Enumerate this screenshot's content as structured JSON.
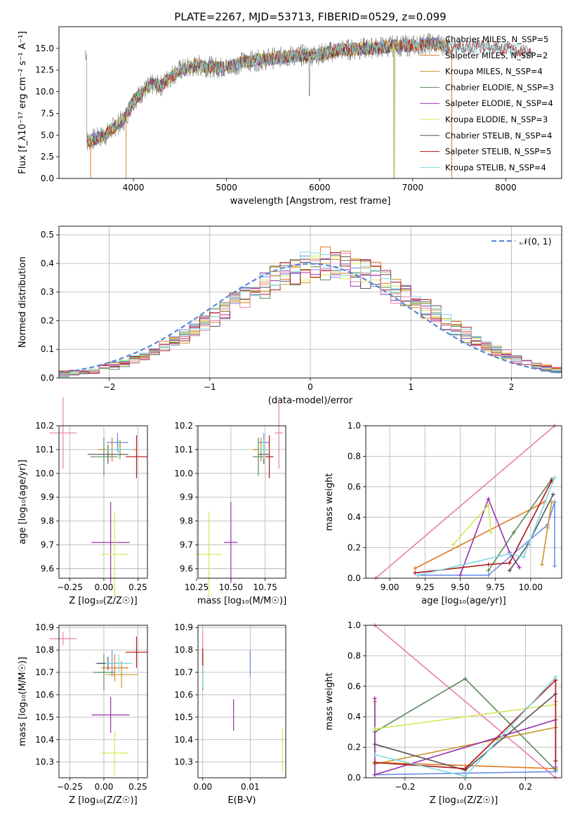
{
  "title": "PLATE=2267, MJD=53713, FIBERID=0529, z=0.099",
  "colors": {
    "chabrier_miles": "#6a8ee8",
    "salpeter_miles": "#e07a1f",
    "kroupa_miles": "#c8962a",
    "chabrier_elodie": "#5a8a5a",
    "salpeter_elodie": "#9b30b0",
    "kroupa_elodie": "#d6e85a",
    "chabrier_stelib": "#555555",
    "salpeter_stelib": "#b01515",
    "kroupa_stelib": "#7fd8e0",
    "pink": "#e87fb0",
    "grid": "#b0b0b0"
  },
  "chart_data": [
    {
      "id": "spectrum",
      "type": "line",
      "xlabel": "wavelength [Angstrom, rest frame]",
      "ylabel": "Flux [f_λ10⁻¹⁷ erg cm⁻² s⁻¹ A⁻¹]",
      "xlim": [
        3200,
        8600
      ],
      "ylim": [
        0,
        17.5
      ],
      "xticks": [
        "4000",
        "5000",
        "6000",
        "7000",
        "8000"
      ],
      "xtick_values": [
        4000,
        5000,
        6000,
        7000,
        8000
      ],
      "yticks": [
        "0.0",
        "2.5",
        "5.0",
        "7.5",
        "10.0",
        "12.5",
        "15.0"
      ],
      "ytick_values": [
        0,
        2.5,
        5,
        7.5,
        10,
        12.5,
        15
      ],
      "grid": false,
      "legend_position": "right",
      "continuum": {
        "x": [
          3500,
          3600,
          3700,
          3800,
          3900,
          4000,
          4100,
          4200,
          4300,
          4400,
          4500,
          4700,
          4900,
          5000,
          5200,
          5400,
          5600,
          5800,
          6000,
          6200,
          6400,
          6600,
          6800,
          7000,
          7200,
          7400,
          7600,
          7800,
          8000,
          8200,
          8300
        ],
        "y": [
          4.3,
          4.6,
          5.0,
          6.0,
          6.8,
          9.0,
          10.0,
          10.8,
          10.7,
          11.8,
          12.5,
          13.0,
          12.8,
          12.8,
          13.5,
          13.7,
          14.0,
          14.2,
          14.3,
          14.8,
          14.9,
          15.1,
          15.3,
          15.3,
          15.6,
          15.3,
          15.2,
          15.2,
          14.9,
          14.7,
          14.6
        ]
      },
      "series": [
        {
          "name": "Chabrier MILES, N_SSP=5"
        },
        {
          "name": "Salpeter MILES, N_SSP=2"
        },
        {
          "name": "Kroupa MILES, N_SSP=4"
        },
        {
          "name": "Chabrier ELODIE, N_SSP=3"
        },
        {
          "name": "Salpeter ELODIE, N_SSP=4"
        },
        {
          "name": "Kroupa ELODIE, N_SSP=3"
        },
        {
          "name": "Chabrier STELIB, N_SSP=4"
        },
        {
          "name": "Salpeter STELIB, N_SSP=5"
        },
        {
          "name": "Kroupa STELIB, N_SSP=4"
        }
      ]
    },
    {
      "id": "residuals",
      "type": "histogram",
      "xlabel": "(data-model)/error",
      "ylabel": "Normed distribution",
      "xlim": [
        -2.5,
        2.5
      ],
      "ylim": [
        0,
        0.53
      ],
      "xticks": [
        "−2",
        "−1",
        "0",
        "1",
        "2"
      ],
      "xtick_values": [
        -2,
        -1,
        0,
        1,
        2
      ],
      "yticks": [
        "0.0",
        "0.1",
        "0.2",
        "0.3",
        "0.4",
        "0.5"
      ],
      "ytick_values": [
        0,
        0.1,
        0.2,
        0.3,
        0.4,
        0.5
      ],
      "grid": true,
      "legend": "𝒩(0, 1)",
      "legend_position": "top-right",
      "reference": {
        "type": "normal",
        "mean": 0,
        "sigma": 1
      }
    },
    {
      "id": "age-vs-Z",
      "type": "errorbar",
      "xlabel": "Z [log₁₀(Z/Z☉)]",
      "ylabel": "age  [log₁₀(age/yr)]",
      "xlim": [
        -0.33,
        0.32
      ],
      "ylim": [
        9.56,
        10.2
      ],
      "xticks": [
        "−0.25",
        "0.00",
        "0.25"
      ],
      "xtick_values": [
        -0.25,
        0,
        0.25
      ],
      "yticks": [
        "9.6",
        "9.7",
        "9.8",
        "9.9",
        "10.0",
        "10.1",
        "10.2"
      ],
      "ytick_values": [
        9.6,
        9.7,
        9.8,
        9.9,
        10.0,
        10.1,
        10.2
      ],
      "grid": true,
      "points": [
        {
          "c": "chabrier_miles",
          "x": 0.1,
          "xerr": 0.08,
          "y": 10.13,
          "yerr": 0.04
        },
        {
          "c": "salpeter_miles",
          "x": 0.06,
          "xerr": 0.1,
          "y": 10.1,
          "yerr": 0.05
        },
        {
          "c": "kroupa_miles",
          "x": 0.12,
          "xerr": 0.12,
          "y": 10.1,
          "yerr": 0.04
        },
        {
          "c": "chabrier_elodie",
          "x": 0.0,
          "xerr": 0.1,
          "y": 10.07,
          "yerr": 0.08
        },
        {
          "c": "salpeter_elodie",
          "x": 0.05,
          "xerr": 0.14,
          "y": 9.71,
          "yerr": 0.17
        },
        {
          "c": "kroupa_elodie",
          "x": 0.08,
          "xerr": 0.1,
          "y": 9.66,
          "yerr": 0.18
        },
        {
          "c": "chabrier_stelib",
          "x": 0.03,
          "xerr": 0.15,
          "y": 10.08,
          "yerr": 0.04
        },
        {
          "c": "salpeter_stelib",
          "x": 0.24,
          "xerr": 0.08,
          "y": 10.07,
          "yerr": 0.09
        },
        {
          "c": "kroupa_stelib",
          "x": 0.11,
          "xerr": 0.1,
          "y": 10.1,
          "yerr": 0.04
        },
        {
          "c": "pink",
          "x": -0.3,
          "xerr": 0.1,
          "y": 10.17,
          "yerr": 0.15
        }
      ]
    },
    {
      "id": "age-vs-mass",
      "type": "errorbar",
      "xlabel": "mass [log₁₀(M/M☉)]",
      "ylabel": "",
      "xlim": [
        10.26,
        10.9
      ],
      "ylim": [
        9.56,
        10.2
      ],
      "xticks": [
        "10.25",
        "10.50",
        "10.75"
      ],
      "xtick_values": [
        10.25,
        10.5,
        10.75
      ],
      "yticks": [
        "9.6",
        "9.7",
        "9.8",
        "9.9",
        "10.0",
        "10.1",
        "10.2"
      ],
      "ytick_values": [
        9.6,
        9.7,
        9.8,
        9.9,
        10.0,
        10.1,
        10.2
      ],
      "grid": true,
      "points": [
        {
          "c": "chabrier_miles",
          "x": 10.74,
          "xerr": 0.04,
          "y": 10.13,
          "yerr": 0.04
        },
        {
          "c": "salpeter_miles",
          "x": 10.72,
          "xerr": 0.06,
          "y": 10.1,
          "yerr": 0.05
        },
        {
          "c": "kroupa_miles",
          "x": 10.72,
          "xerr": 0.05,
          "y": 10.1,
          "yerr": 0.04
        },
        {
          "c": "chabrier_elodie",
          "x": 10.7,
          "xerr": 0.04,
          "y": 10.07,
          "yerr": 0.08
        },
        {
          "c": "salpeter_elodie",
          "x": 10.5,
          "xerr": 0.05,
          "y": 9.71,
          "yerr": 0.17
        },
        {
          "c": "kroupa_elodie",
          "x": 10.34,
          "xerr": 0.1,
          "y": 9.66,
          "yerr": 0.18
        },
        {
          "c": "chabrier_stelib",
          "x": 10.74,
          "xerr": 0.04,
          "y": 10.08,
          "yerr": 0.04
        },
        {
          "c": "salpeter_stelib",
          "x": 10.78,
          "xerr": 0.03,
          "y": 10.07,
          "yerr": 0.09
        },
        {
          "c": "kroupa_stelib",
          "x": 10.74,
          "xerr": 0.04,
          "y": 10.1,
          "yerr": 0.04
        },
        {
          "c": "pink",
          "x": 10.85,
          "xerr": 0.03,
          "y": 10.17,
          "yerr": 0.15
        }
      ]
    },
    {
      "id": "weight-vs-age",
      "type": "line",
      "xlabel": "age  [log₁₀(age/yr)]",
      "ylabel": "mass weight",
      "xlim": [
        8.83,
        10.22
      ],
      "ylim": [
        0,
        1
      ],
      "xticks": [
        "9.00",
        "9.25",
        "9.50",
        "9.75",
        "10.00"
      ],
      "xtick_values": [
        9.0,
        9.25,
        9.5,
        9.75,
        10.0
      ],
      "yticks": [
        "0.0",
        "0.2",
        "0.4",
        "0.6",
        "0.8",
        "1.0"
      ],
      "ytick_values": [
        0,
        0.2,
        0.4,
        0.6,
        0.8,
        1.0
      ],
      "grid": true,
      "series": [
        {
          "c": "pink",
          "x": [
            8.9,
            10.17
          ],
          "y": [
            0.0,
            1.0
          ]
        },
        {
          "c": "chabrier_miles",
          "x": [
            9.2,
            9.7,
            10.12,
            10.17,
            10.17
          ],
          "y": [
            0.02,
            0.02,
            0.35,
            0.5,
            0.08
          ]
        },
        {
          "c": "salpeter_miles",
          "x": [
            9.18,
            10.1
          ],
          "y": [
            0.065,
            0.5
          ]
        },
        {
          "c": "kroupa_miles",
          "x": [
            10.08,
            10.12,
            10.15
          ],
          "y": [
            0.09,
            0.33,
            0.5
          ]
        },
        {
          "c": "chabrier_elodie",
          "x": [
            9.7,
            9.88,
            10.15
          ],
          "y": [
            0.05,
            0.3,
            0.65
          ]
        },
        {
          "c": "salpeter_elodie",
          "x": [
            9.5,
            9.7,
            9.85,
            9.92
          ],
          "y": [
            0.02,
            0.52,
            0.17,
            0.07
          ]
        },
        {
          "c": "kroupa_elodie",
          "x": [
            9.45,
            9.7,
            9.72
          ],
          "y": [
            0.22,
            0.48,
            0.3
          ]
        },
        {
          "c": "chabrier_stelib",
          "x": [
            9.85,
            9.98,
            10.16
          ],
          "y": [
            0.05,
            0.22,
            0.55
          ]
        },
        {
          "c": "salpeter_stelib",
          "x": [
            9.18,
            9.7,
            9.85,
            10.15
          ],
          "y": [
            0.035,
            0.09,
            0.1,
            0.64
          ]
        },
        {
          "c": "kroupa_stelib",
          "x": [
            9.2,
            9.85,
            9.95,
            10.17
          ],
          "y": [
            0.02,
            0.16,
            0.14,
            0.66
          ]
        }
      ]
    },
    {
      "id": "mass-vs-Z",
      "type": "errorbar",
      "xlabel": "Z [log₁₀(Z/Z☉)]",
      "ylabel": "mass [log₁₀(M/M☉)]",
      "xlim": [
        -0.33,
        0.32
      ],
      "ylim": [
        10.23,
        10.91
      ],
      "xticks": [
        "−0.25",
        "0.00",
        "0.25"
      ],
      "xtick_values": [
        -0.25,
        0,
        0.25
      ],
      "yticks": [
        "10.3",
        "10.4",
        "10.5",
        "10.6",
        "10.7",
        "10.8",
        "10.9"
      ],
      "ytick_values": [
        10.3,
        10.4,
        10.5,
        10.6,
        10.7,
        10.8,
        10.9
      ],
      "grid": true,
      "points": [
        {
          "c": "chabrier_miles",
          "x": 0.06,
          "xerr": 0.12,
          "y": 10.74,
          "yerr": 0.06
        },
        {
          "c": "salpeter_miles",
          "x": 0.08,
          "xerr": 0.1,
          "y": 10.72,
          "yerr": 0.06
        },
        {
          "c": "kroupa_miles",
          "x": 0.13,
          "xerr": 0.12,
          "y": 10.69,
          "yerr": 0.06
        },
        {
          "c": "chabrier_elodie",
          "x": 0.0,
          "xerr": 0.08,
          "y": 10.7,
          "yerr": 0.08
        },
        {
          "c": "salpeter_elodie",
          "x": 0.05,
          "xerr": 0.14,
          "y": 10.51,
          "yerr": 0.08
        },
        {
          "c": "kroupa_elodie",
          "x": 0.08,
          "xerr": 0.1,
          "y": 10.34,
          "yerr": 0.1
        },
        {
          "c": "chabrier_stelib",
          "x": 0.03,
          "xerr": 0.08,
          "y": 10.74,
          "yerr": 0.03
        },
        {
          "c": "salpeter_stelib",
          "x": 0.24,
          "xerr": 0.08,
          "y": 10.79,
          "yerr": 0.07
        },
        {
          "c": "kroupa_stelib",
          "x": 0.11,
          "xerr": 0.1,
          "y": 10.74,
          "yerr": 0.04
        },
        {
          "c": "pink",
          "x": -0.3,
          "xerr": 0.1,
          "y": 10.85,
          "yerr": 0.03
        }
      ]
    },
    {
      "id": "mass-vs-ebv",
      "type": "errorbar",
      "xlabel": "E(B-V)",
      "ylabel": "",
      "xlim": [
        -0.001,
        0.0175
      ],
      "ylim": [
        10.23,
        10.91
      ],
      "xticks": [
        "0.00",
        "0.01"
      ],
      "xtick_values": [
        0,
        0.01
      ],
      "yticks": [
        "10.3",
        "10.4",
        "10.5",
        "10.6",
        "10.7",
        "10.8",
        "10.9"
      ],
      "ytick_values": [
        10.3,
        10.4,
        10.5,
        10.6,
        10.7,
        10.8,
        10.9
      ],
      "grid": true,
      "points": [
        {
          "c": "chabrier_miles",
          "x": 0.01,
          "xerr": 0,
          "y": 10.74,
          "yerr": 0.06
        },
        {
          "c": "salpeter_miles",
          "x": 0.0,
          "xerr": 0,
          "y": 10.72,
          "yerr": 0.06
        },
        {
          "c": "chabrier_elodie",
          "x": 0.0,
          "xerr": 0,
          "y": 10.7,
          "yerr": 0.08
        },
        {
          "c": "salpeter_elodie",
          "x": 0.0065,
          "xerr": 0,
          "y": 10.51,
          "yerr": 0.07
        },
        {
          "c": "kroupa_elodie",
          "x": 0.0168,
          "xerr": 0,
          "y": 10.35,
          "yerr": 0.1
        },
        {
          "c": "salpeter_stelib",
          "x": 0.0,
          "xerr": 0,
          "y": 10.76,
          "yerr": 0.05
        },
        {
          "c": "kroupa_stelib",
          "x": 0.0,
          "xerr": 0,
          "y": 10.68,
          "yerr": 0.05
        },
        {
          "c": "pink",
          "x": 0.0,
          "xerr": 0,
          "y": 10.85,
          "yerr": 0.04
        }
      ]
    },
    {
      "id": "weight-vs-Z",
      "type": "line",
      "xlabel": "Z [log₁₀(Z/Z☉)]",
      "ylabel": "mass weight",
      "xlim": [
        -0.33,
        0.32
      ],
      "ylim": [
        0,
        1
      ],
      "xticks": [
        "−0.2",
        "0.0",
        "0.2"
      ],
      "xtick_values": [
        -0.2,
        0.0,
        0.2
      ],
      "yticks": [
        "0.0",
        "0.2",
        "0.4",
        "0.6",
        "0.8",
        "1.0"
      ],
      "ytick_values": [
        0,
        0.2,
        0.4,
        0.6,
        0.8,
        1.0
      ],
      "grid": true,
      "series": [
        {
          "c": "pink",
          "x": [
            -0.3,
            0.3
          ],
          "y": [
            1.0,
            0.0
          ]
        },
        {
          "c": "chabrier_miles",
          "x": [
            -0.3,
            0.3
          ],
          "y": [
            0.02,
            0.04
          ]
        },
        {
          "c": "salpeter_miles",
          "x": [
            -0.3,
            0.0,
            0.3
          ],
          "y": [
            0.1,
            0.08,
            0.06
          ]
        },
        {
          "c": "kroupa_miles",
          "x": [
            -0.3,
            -0.3,
            0.3,
            0.3
          ],
          "y": [
            0.5,
            0.09,
            0.33,
            0.5
          ]
        },
        {
          "c": "chabrier_elodie",
          "x": [
            -0.3,
            0.0,
            0.3
          ],
          "y": [
            0.3,
            0.65,
            0.05
          ]
        },
        {
          "c": "salpeter_elodie",
          "x": [
            -0.3,
            -0.3,
            0.3,
            0.3
          ],
          "y": [
            0.52,
            0.02,
            0.38,
            0.07
          ]
        },
        {
          "c": "kroupa_elodie",
          "x": [
            -0.3,
            0.3
          ],
          "y": [
            0.32,
            0.48
          ]
        },
        {
          "c": "chabrier_stelib",
          "x": [
            -0.3,
            0.0,
            0.3
          ],
          "y": [
            0.22,
            0.05,
            0.55
          ]
        },
        {
          "c": "salpeter_stelib",
          "x": [
            -0.3,
            0.0,
            0.3,
            0.3
          ],
          "y": [
            0.1,
            0.06,
            0.64,
            0.11
          ]
        },
        {
          "c": "kroupa_stelib",
          "x": [
            -0.3,
            0.0,
            0.3
          ],
          "y": [
            0.15,
            0.01,
            0.66
          ]
        }
      ]
    }
  ]
}
